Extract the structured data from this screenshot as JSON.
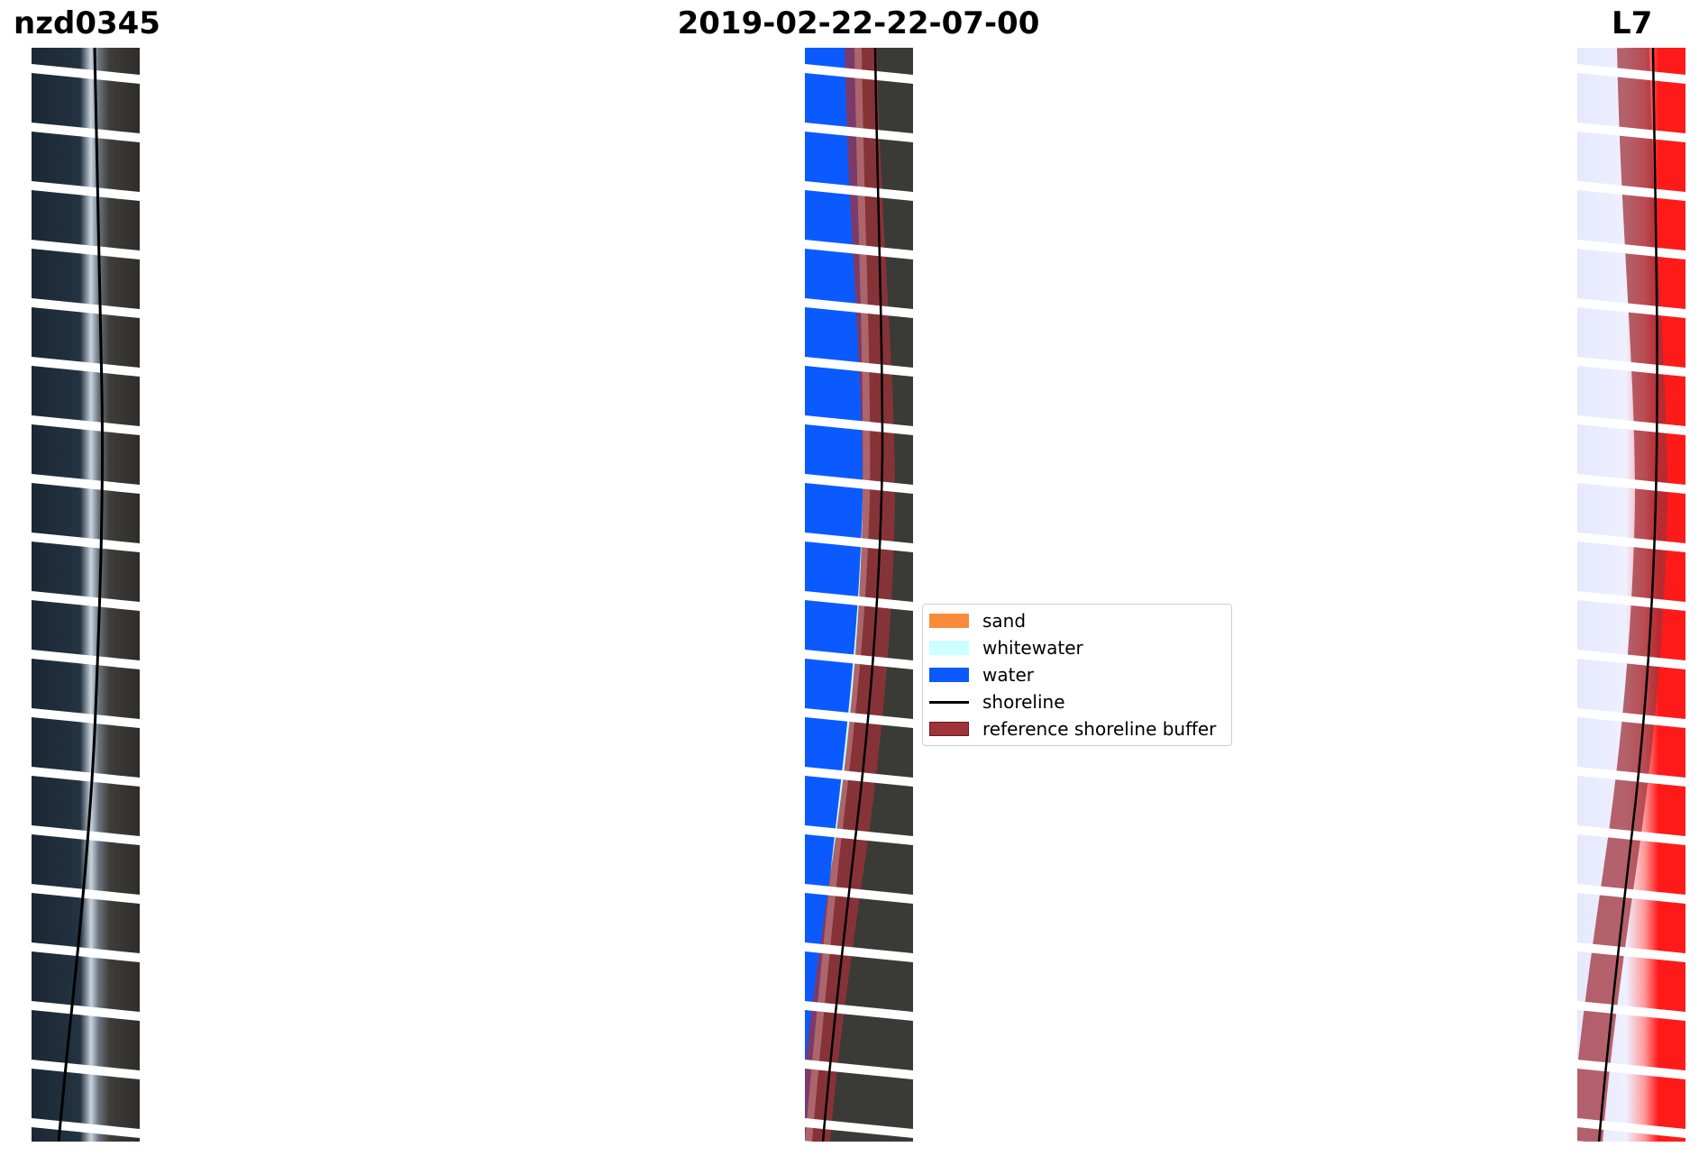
{
  "titles": {
    "site": "nzd0345",
    "date": "2019-02-22-22-07-00",
    "satellite": "L7"
  },
  "legend": {
    "items": [
      {
        "label": "sand",
        "color": "#f98b3a",
        "kind": "patch"
      },
      {
        "label": "whitewater",
        "color": "#ccffff",
        "kind": "patch"
      },
      {
        "label": "water",
        "color": "#0a5aff",
        "kind": "patch"
      },
      {
        "label": "shoreline",
        "color": "#000000",
        "kind": "line"
      },
      {
        "label": "reference shoreline buffer",
        "color": "#a0323a",
        "kind": "patch"
      }
    ]
  },
  "colors": {
    "dark_ocean": "#1a2530",
    "land": "#47443f",
    "water_class": "#0a5aff",
    "whitewater_class": "#ccffff",
    "buffer": "#a0323a",
    "index_red": "#ff1a1a",
    "index_blue_light": "#e6e8ff"
  }
}
